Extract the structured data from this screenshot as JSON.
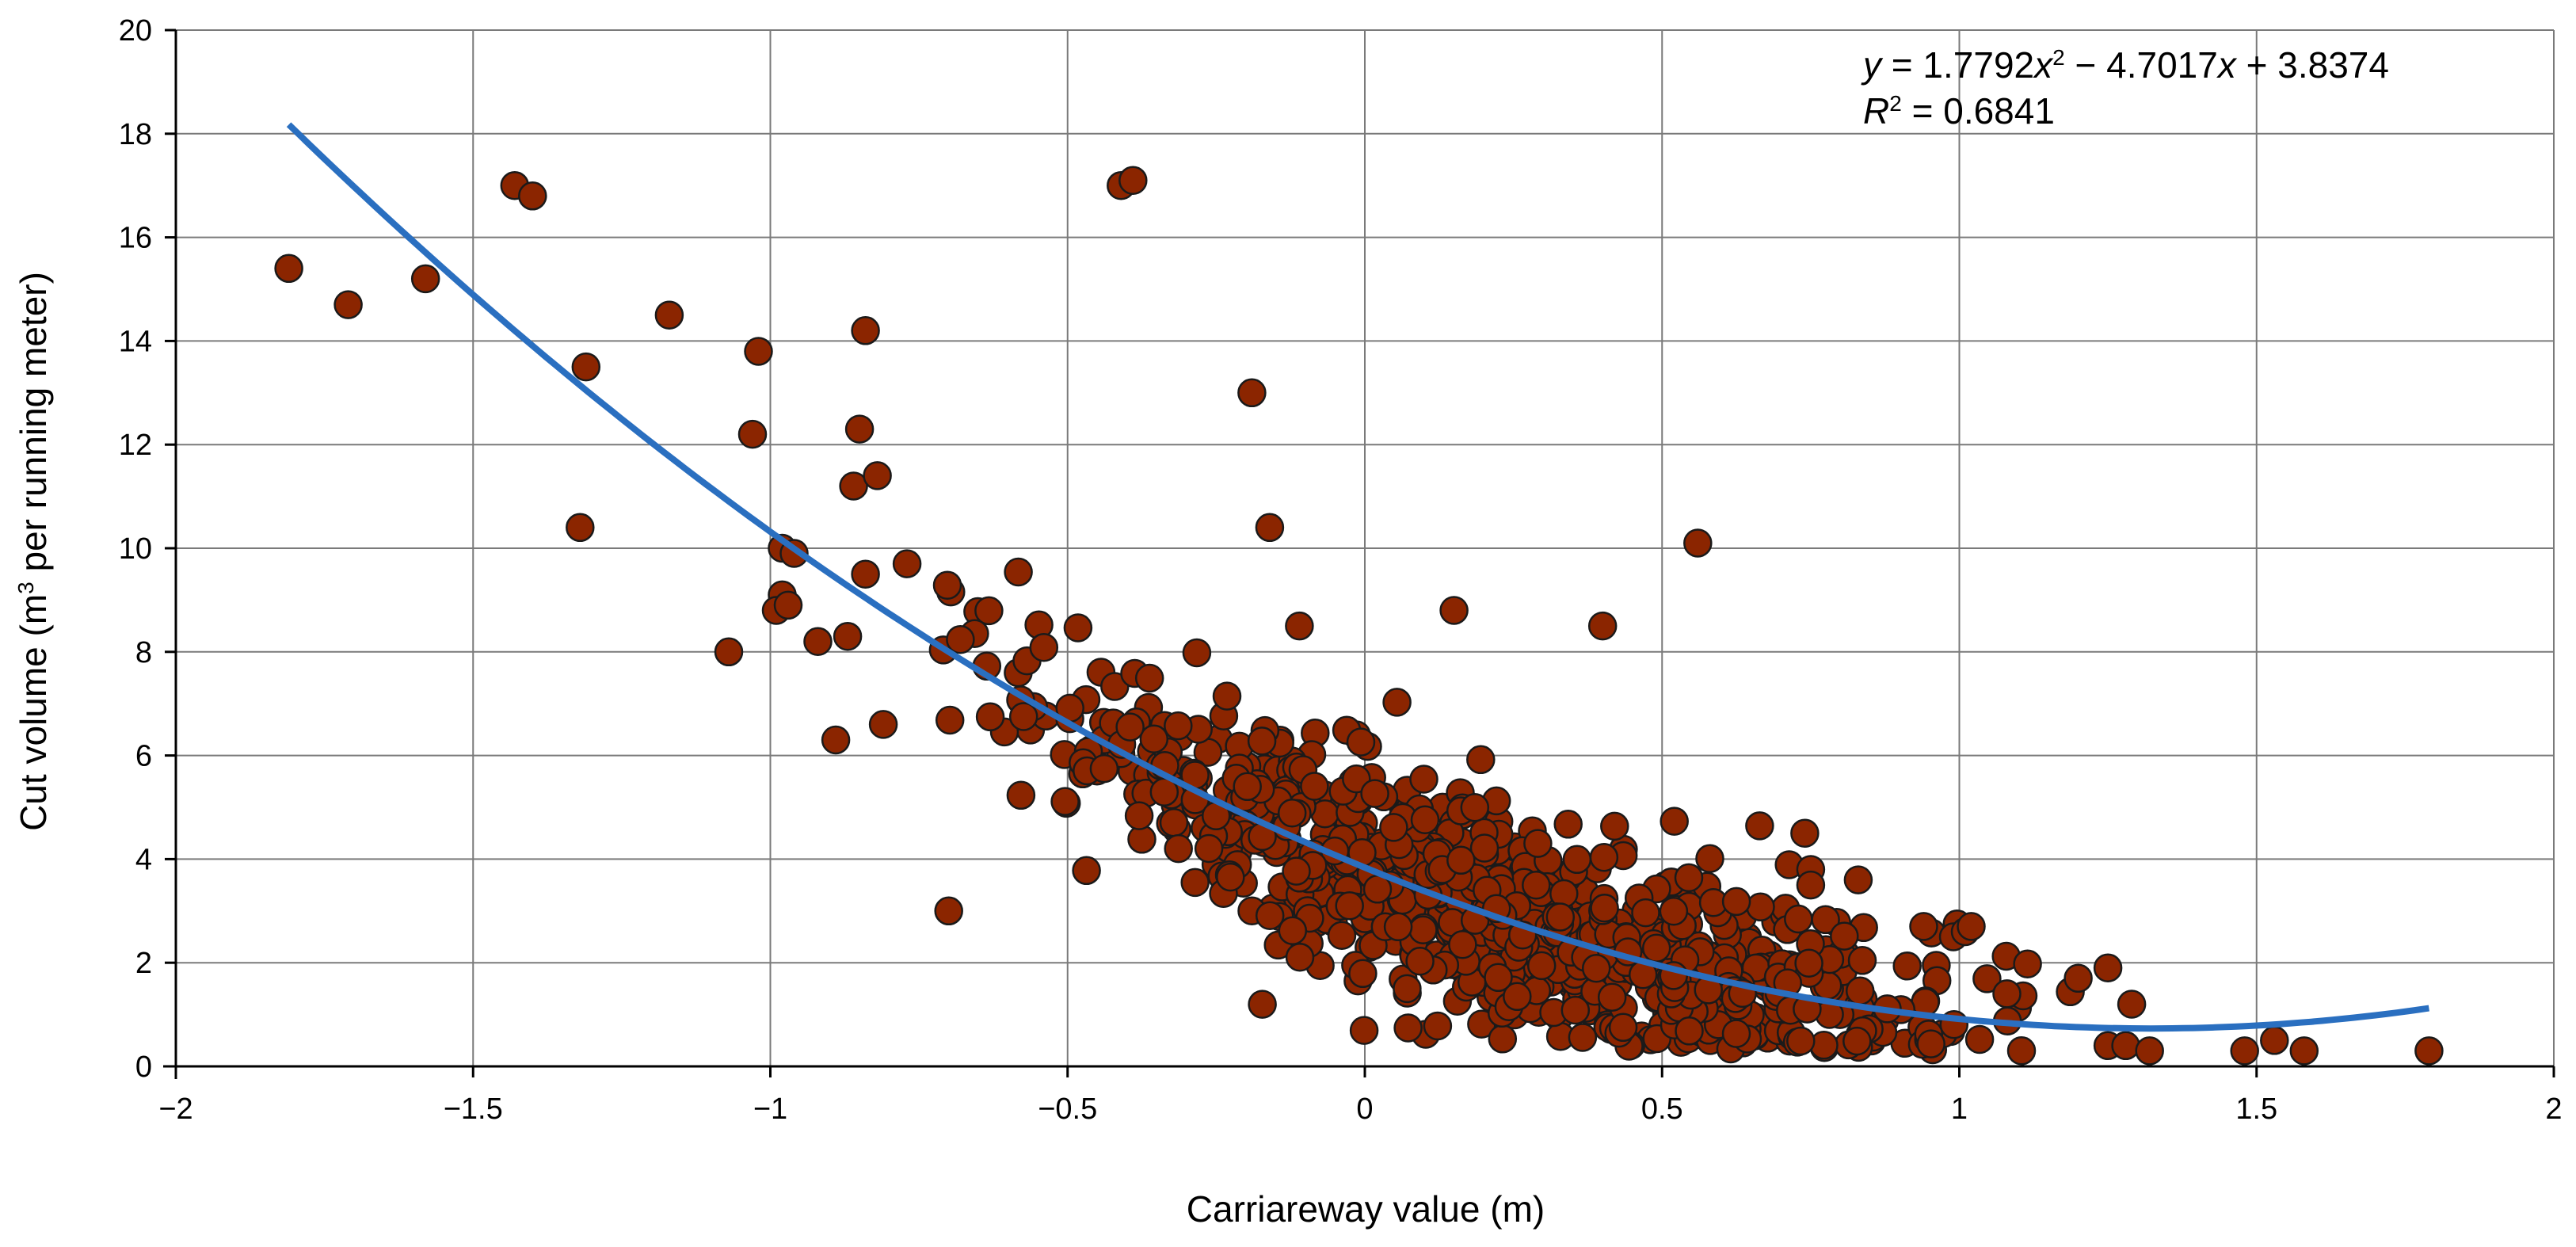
{
  "chart_data": {
    "type": "scatter",
    "title": "",
    "xlabel": "Carriareway value (m)",
    "ylabel_parts": {
      "prefix": "Cut volume (m",
      "sup": "3",
      "suffix": " per running meter)"
    },
    "xlim": [
      -2,
      2
    ],
    "ylim": [
      0,
      20
    ],
    "x_ticks": [
      "−2",
      "−1.5",
      "−1",
      "−0.5",
      "0",
      "0.5",
      "1",
      "1.5",
      "2"
    ],
    "y_ticks": [
      "0",
      "2",
      "4",
      "6",
      "8",
      "10",
      "12",
      "14",
      "16",
      "18",
      "20"
    ],
    "grid": true,
    "colors": {
      "points": "#8B2500",
      "point_edge": "#1a1a1a",
      "trendline": "#2a6fc0",
      "grid": "#7a7a7a"
    },
    "trendline": {
      "type": "polynomial",
      "coefficients": {
        "a": 1.7792,
        "b": -4.7017,
        "c": 3.8374
      },
      "x_range": [
        -1.81,
        1.79
      ],
      "equation_text": {
        "y": "y",
        "eq1": " = 1.7792",
        "x1": "x",
        "sup": "2",
        "eq2": " − 4.7017",
        "x2": "x",
        "eq3": " + 3.8374"
      },
      "r2_text": {
        "r": "R",
        "sup": "2",
        "rest": " = 0.6841"
      }
    },
    "outliers": [
      [
        -1.81,
        15.4
      ],
      [
        -1.71,
        14.7
      ],
      [
        -1.58,
        15.2
      ],
      [
        -1.43,
        17.0
      ],
      [
        -1.4,
        16.8
      ],
      [
        -1.31,
        13.5
      ],
      [
        -1.32,
        10.4
      ],
      [
        -1.17,
        14.5
      ],
      [
        -1.07,
        8.0
      ],
      [
        -1.02,
        13.8
      ],
      [
        -1.03,
        12.2
      ],
      [
        -0.98,
        10.0
      ],
      [
        -0.96,
        9.9
      ],
      [
        -0.98,
        9.1
      ],
      [
        -0.99,
        8.8
      ],
      [
        -0.97,
        8.9
      ],
      [
        -0.92,
        8.2
      ],
      [
        -0.89,
        6.3
      ],
      [
        -0.87,
        8.3
      ],
      [
        -0.86,
        11.2
      ],
      [
        -0.85,
        12.3
      ],
      [
        -0.84,
        14.2
      ],
      [
        -0.84,
        9.5
      ],
      [
        -0.82,
        11.4
      ],
      [
        -0.81,
        6.6
      ],
      [
        -0.77,
        9.7
      ],
      [
        -0.7,
        3.0
      ],
      [
        -0.41,
        17.0
      ],
      [
        -0.39,
        17.1
      ],
      [
        -0.19,
        13.0
      ],
      [
        -0.16,
        10.4
      ],
      [
        -0.11,
        8.5
      ],
      [
        0.15,
        8.8
      ],
      [
        0.4,
        8.5
      ],
      [
        0.56,
        10.1
      ],
      [
        0.74,
        4.5
      ],
      [
        0.75,
        3.8
      ],
      [
        0.75,
        3.5
      ],
      [
        0.83,
        3.6
      ],
      [
        0.94,
        2.7
      ],
      [
        0.99,
        2.5
      ],
      [
        1.01,
        2.6
      ],
      [
        1.02,
        2.7
      ],
      [
        1.08,
        1.4
      ],
      [
        1.2,
        1.7
      ],
      [
        1.25,
        1.9
      ],
      [
        1.29,
        1.2
      ],
      [
        1.25,
        0.4
      ],
      [
        1.28,
        0.4
      ],
      [
        1.32,
        0.3
      ],
      [
        1.48,
        0.3
      ],
      [
        1.53,
        0.5
      ],
      [
        1.58,
        0.3
      ],
      [
        1.79,
        0.3
      ]
    ],
    "main_cloud": {
      "x_range": [
        -0.76,
        1.2
      ],
      "point_count": 900,
      "trend": "follows fitted curve with residual spread about ±1.3"
    }
  }
}
